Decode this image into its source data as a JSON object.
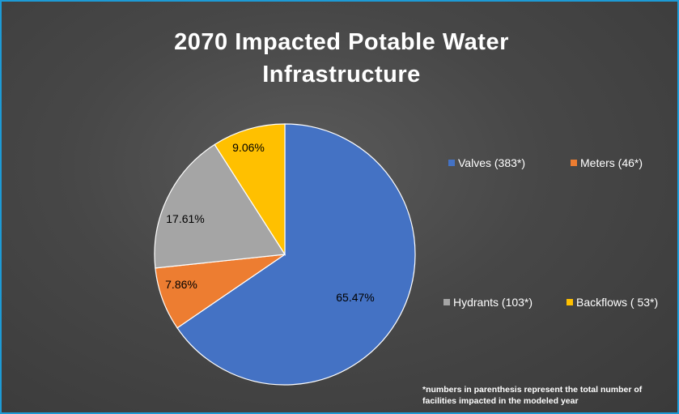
{
  "chart_data": {
    "type": "pie",
    "title": "2070 Impacted Potable Water Infrastructure",
    "slices": [
      {
        "name": "Valves (383*)",
        "value": 65.47,
        "label": "65.47%",
        "color": "#4472c4"
      },
      {
        "name": "Meters (46*)",
        "value": 7.86,
        "label": "7.86%",
        "color": "#ed7d31"
      },
      {
        "name": "Hydrants (103*)",
        "value": 17.61,
        "label": "17.61%",
        "color": "#a5a5a5"
      },
      {
        "name": "Backflows ( 53*)",
        "value": 9.06,
        "label": "9.06%",
        "color": "#ffc000"
      }
    ],
    "legend_position": "right",
    "footnote": "*numbers in parenthesis represent the total number of facilities impacted in the modeled year"
  },
  "colors": {
    "background": "#404040",
    "border": "#1d9bd6",
    "text": "#ffffff"
  }
}
